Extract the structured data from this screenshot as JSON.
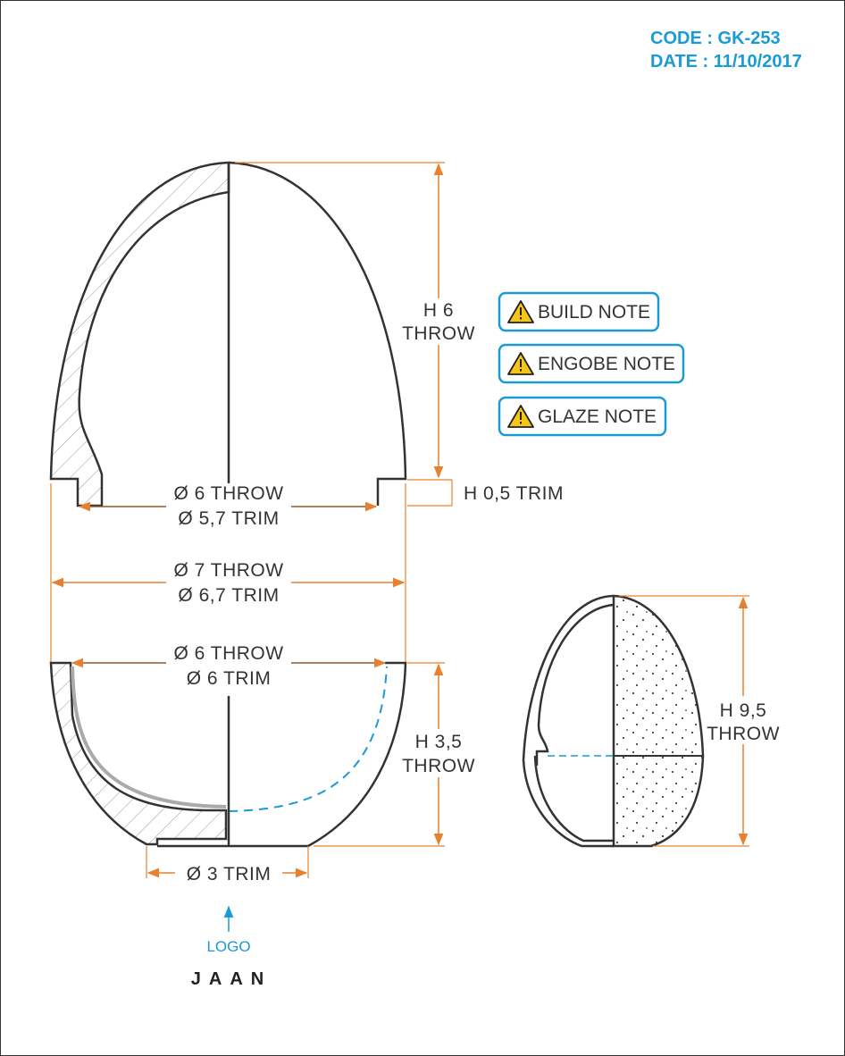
{
  "header": {
    "code": "CODE : GK-253",
    "date": "DATE : 11/10/2017"
  },
  "notes": [
    {
      "label": "BUILD NOTE",
      "icon": "warning-icon"
    },
    {
      "label": "ENGOBE NOTE",
      "icon": "warning-icon"
    },
    {
      "label": "GLAZE NOTE",
      "icon": "warning-icon"
    }
  ],
  "lid": {
    "height_throw": "H 6",
    "height_throw_sub": "THROW",
    "rim_height": "H 0,5 TRIM",
    "inner_dia_throw": "Ø 6 THROW",
    "inner_dia_trim": "Ø 5,7 TRIM"
  },
  "overall": {
    "dia_throw": "Ø 7 THROW",
    "dia_trim": "Ø 6,7 TRIM"
  },
  "bowl": {
    "dia_throw": "Ø 6 THROW",
    "dia_trim": "Ø 6 TRIM",
    "height": "H 3,5",
    "height_sub": "THROW",
    "foot_dia": "Ø 3 TRIM"
  },
  "assembled": {
    "height": "H 9,5",
    "height_sub": "THROW"
  },
  "logo": {
    "label": "LOGO",
    "brand": "JAAN"
  },
  "colors": {
    "dimension": "#e8812f",
    "accent": "#1a9ad6",
    "outline": "#333333",
    "warning": "#f5c518"
  }
}
